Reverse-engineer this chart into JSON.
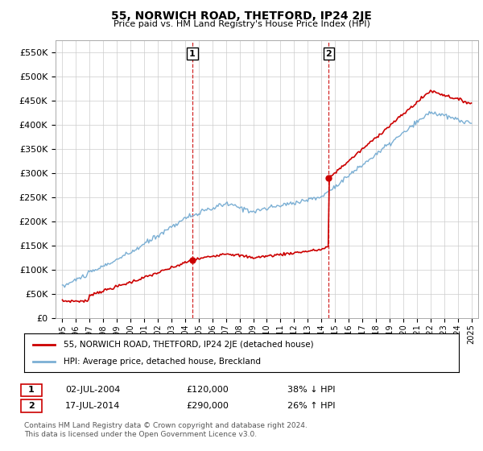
{
  "title": "55, NORWICH ROAD, THETFORD, IP24 2JE",
  "subtitle": "Price paid vs. HM Land Registry's House Price Index (HPI)",
  "ylim": [
    0,
    575000
  ],
  "yticks": [
    0,
    50000,
    100000,
    150000,
    200000,
    250000,
    300000,
    350000,
    400000,
    450000,
    500000,
    550000
  ],
  "ytick_labels": [
    "£0",
    "£50K",
    "£100K",
    "£150K",
    "£200K",
    "£250K",
    "£300K",
    "£350K",
    "£400K",
    "£450K",
    "£500K",
    "£550K"
  ],
  "hpi_color": "#7bafd4",
  "price_color": "#cc0000",
  "t1_year": 2004.54,
  "t1_price": 120000,
  "t2_year": 2014.54,
  "t2_price": 290000,
  "transaction1_date": "02-JUL-2004",
  "transaction1_price": "£120,000",
  "transaction1_pct": "38% ↓ HPI",
  "transaction2_date": "17-JUL-2014",
  "transaction2_price": "£290,000",
  "transaction2_pct": "26% ↑ HPI",
  "legend_label1": "55, NORWICH ROAD, THETFORD, IP24 2JE (detached house)",
  "legend_label2": "HPI: Average price, detached house, Breckland",
  "footnote1": "Contains HM Land Registry data © Crown copyright and database right 2024.",
  "footnote2": "This data is licensed under the Open Government Licence v3.0.",
  "background_color": "#ffffff",
  "grid_color": "#cccccc"
}
